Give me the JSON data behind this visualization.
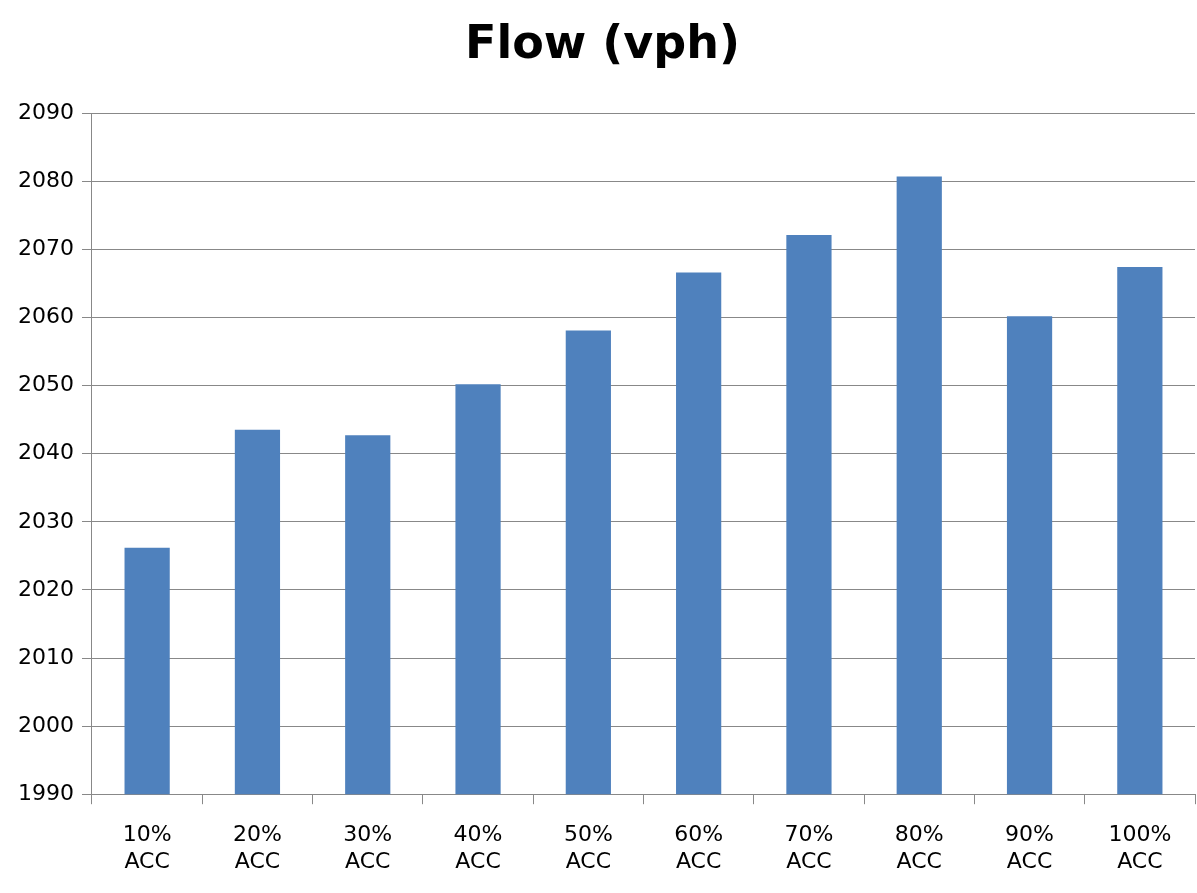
{
  "chart_data": {
    "type": "bar",
    "title": "Flow (vph)",
    "categories": [
      "10% ACC",
      "20% ACC",
      "30% ACC",
      "40% ACC",
      "50% ACC",
      "60% ACC",
      "70% ACC",
      "80% ACC",
      "90% ACC",
      "100% ACC"
    ],
    "values": [
      2026.2,
      2043.5,
      2042.7,
      2050.2,
      2058.1,
      2066.6,
      2072.1,
      2080.7,
      2060.2,
      2067.4
    ],
    "color": "#4f81bd",
    "ylim": [
      1990,
      2090
    ],
    "yticks": [
      1990,
      2000,
      2010,
      2020,
      2030,
      2040,
      2050,
      2060,
      2070,
      2080,
      2090
    ],
    "grid": "y",
    "legend": false
  }
}
